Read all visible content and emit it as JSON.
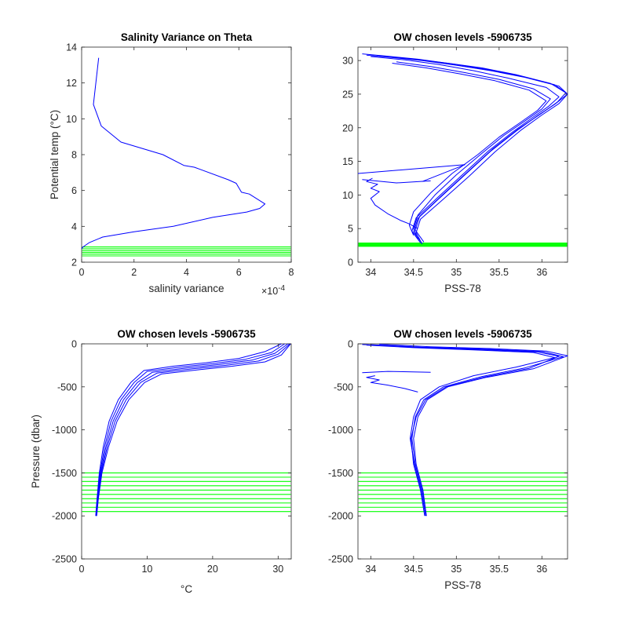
{
  "figure": {
    "background": "#ffffff"
  },
  "colors": {
    "profile": "#0000ff",
    "levels": "#00ff00",
    "axis": "#262626"
  },
  "chart_data": [
    {
      "id": "salinity-variance",
      "type": "line",
      "title": "Salinity Variance on Theta",
      "xlabel": "salinity variance",
      "ylabel": "Potential temp (°C)",
      "x_multiplier_label": "×10",
      "x_multiplier_exponent": "-4",
      "xlim": [
        0,
        8
      ],
      "ylim": [
        2,
        14
      ],
      "xticks": [
        "0",
        "2",
        "4",
        "6",
        "8"
      ],
      "xtick_values": [
        0,
        2,
        4,
        6,
        8
      ],
      "yticks": [
        "2",
        "4",
        "6",
        "8",
        "10",
        "12",
        "14"
      ],
      "ytick_values": [
        2,
        4,
        6,
        8,
        10,
        12,
        14
      ],
      "series": [
        {
          "color": "#0000ff",
          "x": [
            0.65,
            0.45,
            0.75,
            1.5,
            3.1,
            3.9,
            4.3,
            5.6,
            5.9,
            6.1,
            6.4,
            7.0,
            6.8,
            6.3,
            5.0,
            3.5,
            2.0,
            0.8,
            0.3,
            0.05,
            0.0
          ],
          "y": [
            13.4,
            10.8,
            9.6,
            8.7,
            8.0,
            7.4,
            7.3,
            6.6,
            6.4,
            5.9,
            5.8,
            5.25,
            5.0,
            4.8,
            4.5,
            4.0,
            3.7,
            3.4,
            3.1,
            2.85,
            2.75
          ]
        }
      ],
      "hlines": [
        2.35,
        2.45,
        2.55,
        2.65,
        2.75,
        2.85
      ],
      "hline_color": "#00ff00"
    },
    {
      "id": "theta-salinity",
      "type": "line",
      "title": "OW chosen levels -5906735",
      "xlabel": "PSS-78",
      "ylabel": "",
      "xlim": [
        33.85,
        36.3
      ],
      "ylim": [
        0,
        32
      ],
      "xticks": [
        "34",
        "34.5",
        "35",
        "35.5",
        "36"
      ],
      "xtick_values": [
        34,
        34.5,
        35,
        35.5,
        36
      ],
      "yticks": [
        "0",
        "5",
        "10",
        "15",
        "20",
        "25",
        "30"
      ],
      "ytick_values": [
        0,
        5,
        10,
        15,
        20,
        25,
        30
      ],
      "series": [
        {
          "color": "#0000ff",
          "x": [
            34.6,
            34.5,
            34.55,
            34.8,
            35.1,
            35.4,
            35.7,
            35.95,
            36.15,
            36.3,
            36.2,
            35.8,
            35.4,
            35.0,
            34.6,
            34.2,
            33.95
          ],
          "y": [
            2.8,
            4.5,
            6.5,
            9.5,
            13.0,
            16.5,
            19.5,
            21.8,
            23.5,
            25.0,
            26.2,
            27.5,
            28.5,
            29.3,
            30.0,
            30.5,
            30.8
          ]
        },
        {
          "color": "#0000ff",
          "x": [
            34.62,
            34.52,
            34.57,
            34.82,
            35.12,
            35.42,
            35.72,
            35.98,
            36.18,
            36.28,
            36.1,
            35.7,
            35.3,
            34.9,
            34.5,
            34.1
          ],
          "y": [
            3.0,
            4.8,
            6.8,
            9.8,
            13.3,
            16.8,
            19.8,
            22.0,
            23.8,
            25.2,
            26.6,
            27.9,
            28.9,
            29.6,
            30.2,
            30.7
          ]
        },
        {
          "color": "#0000ff",
          "x": [
            34.58,
            34.48,
            34.53,
            34.78,
            35.08,
            35.38,
            35.66,
            35.9,
            36.08,
            36.2,
            36.05,
            35.6,
            35.2,
            34.8,
            34.4,
            34.0
          ],
          "y": [
            2.9,
            4.6,
            6.6,
            9.6,
            13.1,
            16.6,
            19.4,
            21.6,
            23.2,
            24.6,
            26.0,
            27.4,
            28.5,
            29.4,
            30.1,
            30.6
          ]
        },
        {
          "color": "#0000ff",
          "x": [
            34.55,
            34.5,
            34.55,
            34.75,
            35.0,
            35.3,
            35.55,
            35.8,
            36.0,
            36.1,
            35.9,
            35.5,
            35.1,
            34.7,
            34.3
          ],
          "y": [
            3.5,
            5.0,
            7.0,
            10.0,
            13.0,
            16.2,
            18.8,
            21.0,
            22.8,
            24.3,
            25.8,
            27.2,
            28.2,
            29.1,
            29.8
          ]
        },
        {
          "color": "#0000ff",
          "x": [
            34.6,
            34.53,
            34.58,
            34.85,
            35.15,
            35.45,
            35.75,
            36.0,
            36.2,
            36.3,
            36.15,
            35.75,
            35.35,
            34.95,
            34.55,
            34.15,
            33.9
          ],
          "y": [
            2.7,
            4.4,
            6.4,
            9.4,
            12.8,
            16.4,
            19.6,
            21.9,
            23.6,
            25.0,
            26.4,
            27.7,
            28.7,
            29.5,
            30.2,
            30.7,
            31.0
          ]
        },
        {
          "color": "#0000ff",
          "x": [
            34.5,
            34.45,
            34.5,
            34.7,
            34.95,
            35.25,
            35.5,
            35.75,
            35.95,
            36.05,
            35.85,
            35.45,
            35.05,
            34.65,
            34.25
          ],
          "y": [
            4.0,
            5.5,
            7.5,
            10.3,
            13.2,
            16.0,
            18.6,
            20.8,
            22.6,
            24.0,
            25.6,
            27.0,
            28.0,
            28.9,
            29.6
          ]
        },
        {
          "color": "#0000ff",
          "x": [
            34.55,
            34.45,
            34.35,
            34.2,
            34.05,
            34.0,
            34.1,
            34.0,
            34.08,
            33.95,
            34.02
          ],
          "y": [
            5.0,
            5.7,
            6.2,
            7.2,
            8.5,
            9.5,
            10.5,
            11.0,
            11.6,
            12.0,
            12.5
          ]
        },
        {
          "color": "#0000ff",
          "x": [
            34.6,
            35.1,
            33.85
          ],
          "y": [
            12.0,
            14.5,
            13.2
          ]
        },
        {
          "color": "#0000ff",
          "x": [
            34.7,
            34.3,
            33.9
          ],
          "y": [
            12.1,
            11.8,
            12.3
          ]
        }
      ],
      "hlines": [
        2.35,
        2.45,
        2.55,
        2.65,
        2.75,
        2.85
      ],
      "hline_color": "#00ff00"
    },
    {
      "id": "pressure-temperature",
      "type": "line",
      "title": "OW chosen levels -5906735",
      "xlabel": "°C",
      "ylabel": "Pressure (dbar)",
      "xlim": [
        0,
        32
      ],
      "ylim": [
        -2500,
        0
      ],
      "xticks": [
        "0",
        "10",
        "20",
        "30"
      ],
      "xtick_values": [
        0,
        10,
        20,
        30
      ],
      "yticks": [
        "-2500",
        "-2000",
        "-1500",
        "-1000",
        "-500",
        "0"
      ],
      "ytick_values": [
        -2500,
        -2000,
        -1500,
        -1000,
        -500,
        0
      ],
      "series": [
        {
          "color": "#0000ff",
          "x": [
            2.2,
            2.4,
            2.8,
            3.5,
            4.5,
            6.0,
            8.0,
            10.0,
            15.0,
            20.0,
            25.0,
            29.0,
            31.0
          ],
          "y": [
            -2000,
            -1800,
            -1500,
            -1200,
            -900,
            -650,
            -450,
            -320,
            -270,
            -230,
            -180,
            -100,
            0
          ]
        },
        {
          "color": "#0000ff",
          "x": [
            2.2,
            2.45,
            2.9,
            3.7,
            4.8,
            6.4,
            8.5,
            10.8,
            16.0,
            21.0,
            26.0,
            29.5,
            31.5
          ],
          "y": [
            -2000,
            -1800,
            -1500,
            -1200,
            -900,
            -650,
            -450,
            -330,
            -280,
            -240,
            -190,
            -110,
            0
          ]
        },
        {
          "color": "#0000ff",
          "x": [
            2.25,
            2.5,
            3.0,
            3.9,
            5.1,
            6.8,
            9.0,
            11.5,
            17.0,
            22.0,
            27.0,
            30.0,
            31.8
          ],
          "y": [
            -2000,
            -1800,
            -1500,
            -1200,
            -900,
            -650,
            -450,
            -340,
            -290,
            -250,
            -200,
            -120,
            0
          ]
        },
        {
          "color": "#0000ff",
          "x": [
            2.3,
            2.55,
            3.1,
            4.1,
            5.4,
            7.2,
            9.6,
            12.2,
            18.0,
            23.0,
            28.0,
            30.5,
            31.9
          ],
          "y": [
            -2000,
            -1800,
            -1500,
            -1200,
            -900,
            -650,
            -450,
            -350,
            -300,
            -260,
            -210,
            -130,
            0
          ]
        },
        {
          "color": "#0000ff",
          "x": [
            2.15,
            2.35,
            2.7,
            3.3,
            4.2,
            5.6,
            7.5,
            9.5,
            14.0,
            19.0,
            24.0,
            28.0,
            30.5
          ],
          "y": [
            -2000,
            -1800,
            -1500,
            -1200,
            -900,
            -650,
            -450,
            -310,
            -260,
            -220,
            -170,
            -90,
            0
          ]
        }
      ],
      "hlines": [
        -1500,
        -1550,
        -1600,
        -1650,
        -1700,
        -1750,
        -1800,
        -1850,
        -1900,
        -1950
      ],
      "hline_color": "#00ff00"
    },
    {
      "id": "pressure-salinity",
      "type": "line",
      "title": "OW chosen levels -5906735",
      "xlabel": "PSS-78",
      "ylabel": "",
      "xlim": [
        33.85,
        36.3
      ],
      "ylim": [
        -2500,
        0
      ],
      "xticks": [
        "34",
        "34.5",
        "35",
        "35.5",
        "36"
      ],
      "xtick_values": [
        34,
        34.5,
        35,
        35.5,
        36
      ],
      "yticks": [
        "-2500",
        "-2000",
        "-1500",
        "-1000",
        "-500",
        "0"
      ],
      "ytick_values": [
        -2500,
        -2000,
        -1500,
        -1000,
        -500,
        0
      ],
      "series": [
        {
          "color": "#0000ff",
          "x": [
            34.65,
            34.6,
            34.52,
            34.48,
            34.52,
            34.62,
            34.85,
            35.3,
            35.8,
            36.25,
            36.0,
            35.3,
            34.6,
            34.0
          ],
          "y": [
            -2000,
            -1700,
            -1400,
            -1100,
            -850,
            -650,
            -500,
            -380,
            -280,
            -150,
            -90,
            -60,
            -40,
            -10
          ]
        },
        {
          "color": "#0000ff",
          "x": [
            34.65,
            34.61,
            34.53,
            34.5,
            34.55,
            34.66,
            34.9,
            35.35,
            35.9,
            36.3,
            36.05,
            35.4,
            34.7,
            34.1
          ],
          "y": [
            -2000,
            -1700,
            -1400,
            -1100,
            -850,
            -650,
            -500,
            -390,
            -290,
            -140,
            -85,
            -55,
            -35,
            -5
          ]
        },
        {
          "color": "#0000ff",
          "x": [
            34.64,
            34.59,
            34.51,
            34.46,
            34.5,
            34.58,
            34.8,
            35.2,
            35.7,
            36.15,
            35.9,
            35.2,
            34.5,
            33.95
          ],
          "y": [
            -2000,
            -1700,
            -1400,
            -1100,
            -850,
            -650,
            -500,
            -370,
            -270,
            -160,
            -100,
            -70,
            -45,
            -15
          ]
        },
        {
          "color": "#0000ff",
          "x": [
            34.63,
            34.58,
            34.5,
            34.47,
            34.53,
            34.64,
            34.88,
            35.33,
            35.85,
            36.2,
            35.95,
            35.25,
            34.55,
            33.9
          ],
          "y": [
            -2000,
            -1700,
            -1400,
            -1100,
            -850,
            -650,
            -500,
            -385,
            -285,
            -145,
            -95,
            -65,
            -42,
            -8
          ]
        },
        {
          "color": "#0000ff",
          "x": [
            34.55,
            34.4,
            34.2,
            34.0,
            34.1,
            33.95,
            34.05
          ],
          "y": [
            -560,
            -520,
            -480,
            -450,
            -420,
            -390,
            -370
          ]
        },
        {
          "color": "#0000ff",
          "x": [
            34.7,
            34.2,
            33.9
          ],
          "y": [
            -330,
            -320,
            -335
          ]
        }
      ],
      "hlines": [
        -1500,
        -1550,
        -1600,
        -1650,
        -1700,
        -1750,
        -1800,
        -1850,
        -1900,
        -1950
      ],
      "hline_color": "#00ff00"
    }
  ]
}
